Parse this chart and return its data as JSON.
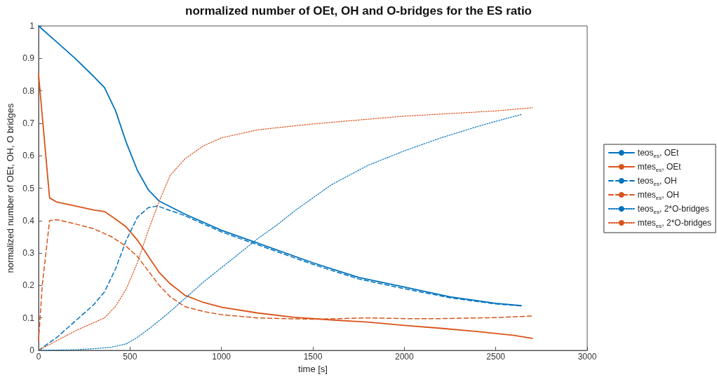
{
  "chart_data": {
    "type": "line",
    "title": "normalized number of OEt, OH and O-bridges for the ES ratio",
    "xlabel": "time [s]",
    "ylabel": "normalized number of OEt, OH, O bridges",
    "xlim": [
      0,
      3000
    ],
    "xticks": [
      0,
      500,
      1000,
      1500,
      2000,
      2500,
      3000
    ],
    "ylim": [
      0,
      1
    ],
    "yticks": [
      0,
      0.1,
      0.2,
      0.3,
      0.4,
      0.5,
      0.6,
      0.7,
      0.8,
      0.9,
      1
    ],
    "grid": false,
    "legend": "right",
    "marker": "none",
    "series": [
      {
        "name": "teos$_{es}$, OEt",
        "color": "#0072bd",
        "line_style": "solid",
        "x": [
          0,
          100,
          200,
          300,
          360,
          420,
          480,
          540,
          600,
          660,
          800,
          1000,
          1200,
          1500,
          1750,
          2000,
          2250,
          2500,
          2640
        ],
        "values": [
          1,
          0.95,
          0.9,
          0.845,
          0.81,
          0.74,
          0.64,
          0.555,
          0.495,
          0.46,
          0.42,
          0.37,
          0.33,
          0.27,
          0.225,
          0.195,
          0.165,
          0.145,
          0.138
        ]
      },
      {
        "name": "mtes$_{es}$, OEt",
        "color": "#d95319",
        "line_style": "solid",
        "x": [
          0,
          60,
          100,
          200,
          300,
          360,
          420,
          480,
          540,
          600,
          660,
          720,
          800,
          900,
          1000,
          1200,
          1400,
          1600,
          1800,
          2000,
          2200,
          2400,
          2600,
          2700
        ],
        "values": [
          0.85,
          0.47,
          0.457,
          0.445,
          0.433,
          0.428,
          0.405,
          0.38,
          0.34,
          0.29,
          0.24,
          0.205,
          0.17,
          0.148,
          0.133,
          0.115,
          0.102,
          0.094,
          0.087,
          0.077,
          0.068,
          0.058,
          0.046,
          0.037
        ]
      },
      {
        "name": "teos$_{es}$, OH",
        "color": "#0072bd",
        "line_style": "dashed",
        "x": [
          0,
          100,
          200,
          300,
          360,
          420,
          480,
          540,
          600,
          650,
          800,
          1000,
          1200,
          1500,
          1750,
          2000,
          2250,
          2500,
          2640
        ],
        "values": [
          0,
          0.04,
          0.09,
          0.14,
          0.18,
          0.25,
          0.34,
          0.41,
          0.44,
          0.445,
          0.415,
          0.365,
          0.325,
          0.265,
          0.22,
          0.19,
          0.162,
          0.143,
          0.137
        ]
      },
      {
        "name": "mtes$_{es}$, OH",
        "color": "#d95319",
        "line_style": "dashed",
        "x": [
          0,
          20,
          60,
          100,
          200,
          300,
          400,
          480,
          540,
          600,
          660,
          720,
          800,
          900,
          1000,
          1200,
          1500,
          1800,
          2000,
          2200,
          2500,
          2700
        ],
        "values": [
          0.03,
          0.2,
          0.4,
          0.403,
          0.39,
          0.375,
          0.35,
          0.32,
          0.29,
          0.245,
          0.2,
          0.165,
          0.135,
          0.12,
          0.11,
          0.1,
          0.096,
          0.1,
          0.098,
          0.098,
          0.101,
          0.106
        ]
      },
      {
        "name": "teos$_{es}$, 2*O-bridges",
        "color": "#0072bd",
        "line_style": "dotted",
        "x": [
          0,
          200,
          300,
          400,
          480,
          540,
          600,
          700,
          800,
          900,
          1000,
          1100,
          1200,
          1300,
          1400,
          1600,
          1800,
          2000,
          2200,
          2400,
          2500,
          2640
        ],
        "values": [
          0,
          0.002,
          0.005,
          0.01,
          0.02,
          0.04,
          0.065,
          0.11,
          0.16,
          0.21,
          0.255,
          0.3,
          0.345,
          0.385,
          0.43,
          0.51,
          0.57,
          0.615,
          0.655,
          0.69,
          0.706,
          0.727
        ]
      },
      {
        "name": "mtes$_{es}$, 2*O-bridges",
        "color": "#d95319",
        "line_style": "dotted",
        "x": [
          0,
          100,
          200,
          300,
          360,
          420,
          480,
          540,
          600,
          660,
          720,
          800,
          900,
          1000,
          1200,
          1500,
          2000,
          2500,
          2700
        ],
        "values": [
          0,
          0.03,
          0.06,
          0.085,
          0.1,
          0.135,
          0.19,
          0.27,
          0.37,
          0.46,
          0.54,
          0.59,
          0.63,
          0.655,
          0.68,
          0.698,
          0.722,
          0.738,
          0.748
        ]
      }
    ]
  }
}
